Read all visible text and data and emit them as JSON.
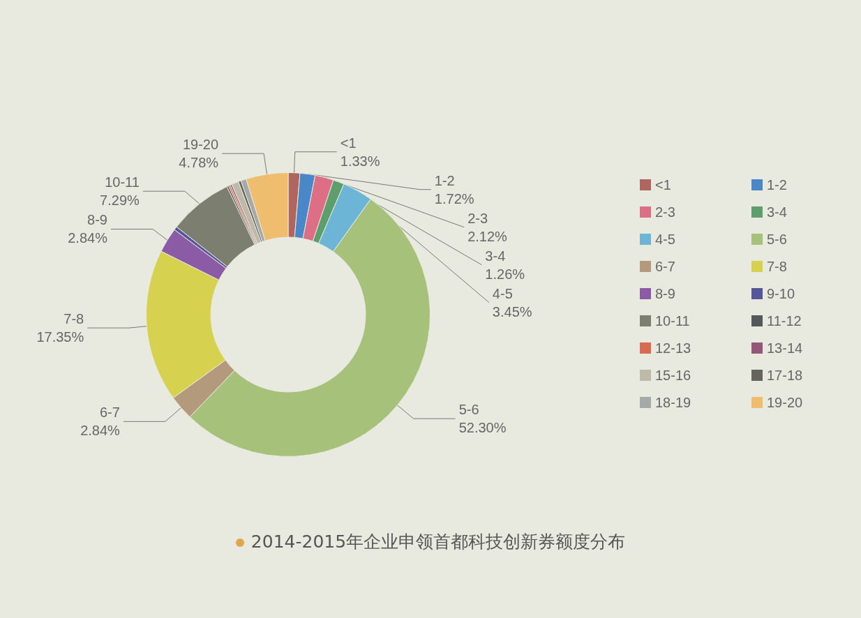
{
  "chart_data": {
    "type": "donut",
    "title": "2014-2015年企业申领首都科技创新券额度分布",
    "categories": [
      "<1",
      "1-2",
      "2-3",
      "3-4",
      "4-5",
      "5-6",
      "6-7",
      "7-8",
      "8-9",
      "9-10",
      "10-11",
      "11-12",
      "12-13",
      "13-14",
      "15-16",
      "17-18",
      "18-19",
      "19-20"
    ],
    "values": [
      1.33,
      1.72,
      2.12,
      1.26,
      3.45,
      52.3,
      2.84,
      17.35,
      2.84,
      0.4,
      7.29,
      0.2,
      0.2,
      0.2,
      0.8,
      0.3,
      0.62,
      4.78
    ],
    "value_labels": [
      "1.33%",
      "1.72%",
      "2.12%",
      "1.26%",
      "3.45%",
      "52.30%",
      "2.84%",
      "17.35%",
      "2.84%",
      null,
      "7.29%",
      null,
      null,
      null,
      null,
      null,
      null,
      "4.78%"
    ],
    "colors": [
      "#b0665e",
      "#4a87c8",
      "#dc6f86",
      "#5d9e6c",
      "#6cb5d6",
      "#a6c27a",
      "#b39a7c",
      "#d6d250",
      "#8c5ba6",
      "#55559a",
      "#7c7f70",
      "#55585a",
      "#d9694f",
      "#945777",
      "#bdbaaa",
      "#66625c",
      "#a5aaa8",
      "#eebe6e"
    ],
    "legend": "right"
  }
}
